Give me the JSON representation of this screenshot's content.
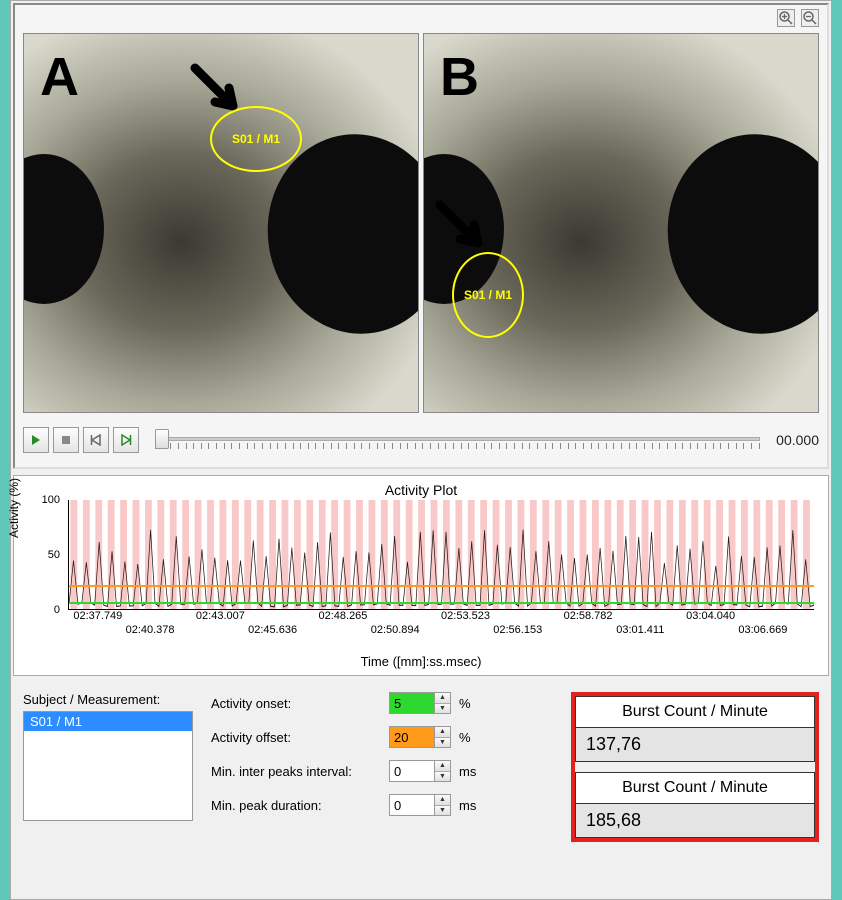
{
  "panels": {
    "A": {
      "letter": "A",
      "roi_label": "S01 / M1"
    },
    "B": {
      "letter": "B",
      "roi_label": "S01 / M1"
    }
  },
  "playback": {
    "time_display": "00.000"
  },
  "plot": {
    "title": "Activity Plot",
    "ylabel": "Activity (%)",
    "xlabel": "Time ([mm]:ss.msec)",
    "ylim": [
      0,
      100
    ],
    "yticks": [
      "0",
      "50",
      "100"
    ],
    "xticks_top": [
      "02:37.749",
      "02:43.007",
      "02:48.265",
      "02:53.523",
      "02:58.782",
      "03:04.040"
    ],
    "xticks_bot": [
      "02:40.378",
      "02:45.636",
      "02:50.894",
      "02:56.153",
      "03:01.411",
      "03:06.669"
    ],
    "onset_threshold_pct": 5,
    "offset_threshold_pct": 20,
    "colors": {
      "burst_bar": "#f9c9c9",
      "signal": "#2a1a1a",
      "onset_line": "#2fd82f",
      "offset_line": "#ff9a1a",
      "grid": "#cccccc",
      "bg": "#ffffff"
    }
  },
  "subject": {
    "label": "Subject / Measurement:",
    "items": [
      "S01 / M1"
    ]
  },
  "params": {
    "activity_onset": {
      "label": "Activity onset:",
      "value": "5",
      "unit": "%",
      "bg": "green"
    },
    "activity_offset": {
      "label": "Activity offset:",
      "value": "20",
      "unit": "%",
      "bg": "orange"
    },
    "min_ipi": {
      "label": "Min. inter peaks interval:",
      "value": "0",
      "unit": "ms",
      "bg": "white"
    },
    "min_pd": {
      "label": "Min. peak duration:",
      "value": "0",
      "unit": "ms",
      "bg": "white"
    }
  },
  "burst": {
    "header": "Burst Count / Minute",
    "valueA": "137,76",
    "valueB": "185,68"
  }
}
